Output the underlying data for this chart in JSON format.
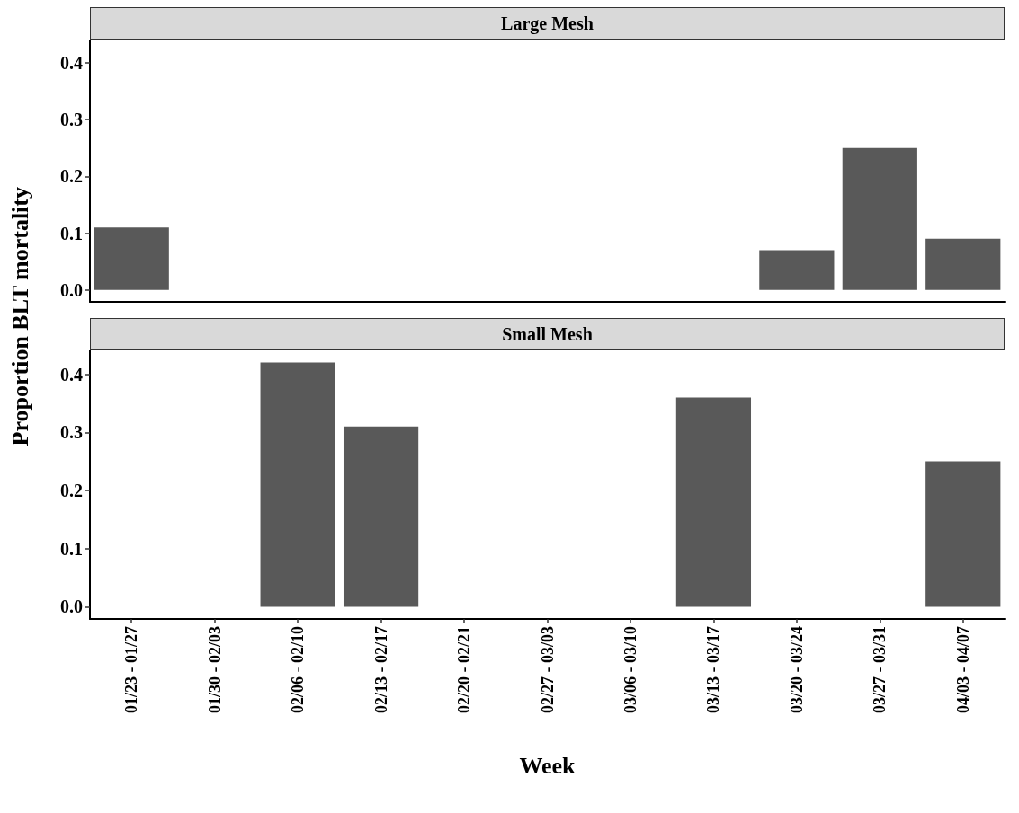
{
  "chart_data": [
    {
      "type": "bar",
      "title": "Large Mesh",
      "categories": [
        null,
        null,
        null,
        null,
        null,
        null,
        null,
        null,
        null,
        null,
        null
      ],
      "values": [
        0.11,
        0,
        0,
        0,
        0,
        0,
        0,
        0,
        0.07,
        0.25,
        0.09
      ],
      "color": "#595959",
      "ylim": [
        -0.021,
        0.441
      ],
      "yticks": [
        {
          "value": 0,
          "label": "0.0"
        },
        {
          "value": 0.1,
          "label": "0.1"
        },
        {
          "value": 0.2,
          "label": "0.2"
        },
        {
          "value": 0.3,
          "label": "0.3"
        },
        {
          "value": 0.4,
          "label": "0.4"
        }
      ],
      "grid": false,
      "tick_labels": "y"
    },
    {
      "type": "bar",
      "title": "Small Mesh",
      "xlabel": "Week",
      "ylabel": "Proportion BLT mortality",
      "categories": [
        "01/23 - 01/27",
        "01/30 - 02/03",
        "02/06 - 02/10",
        "02/13 - 02/17",
        "02/20 - 02/21",
        "02/27 - 03/03",
        "03/06 - 03/10",
        "03/13 - 03/17",
        "03/20 - 03/24",
        "03/27 - 03/31",
        "04/03 - 04/07"
      ],
      "values": [
        0,
        0,
        0.42,
        0.31,
        0,
        0,
        0,
        0.36,
        0,
        0,
        0.25
      ],
      "color": "#595959",
      "ylim": [
        -0.021,
        0.441
      ],
      "yticks": [
        {
          "value": 0,
          "label": "0.0"
        },
        {
          "value": 0.1,
          "label": "0.1"
        },
        {
          "value": 0.2,
          "label": "0.2"
        },
        {
          "value": 0.3,
          "label": "0.3"
        },
        {
          "value": 0.4,
          "label": "0.4"
        }
      ],
      "grid": false
    }
  ]
}
